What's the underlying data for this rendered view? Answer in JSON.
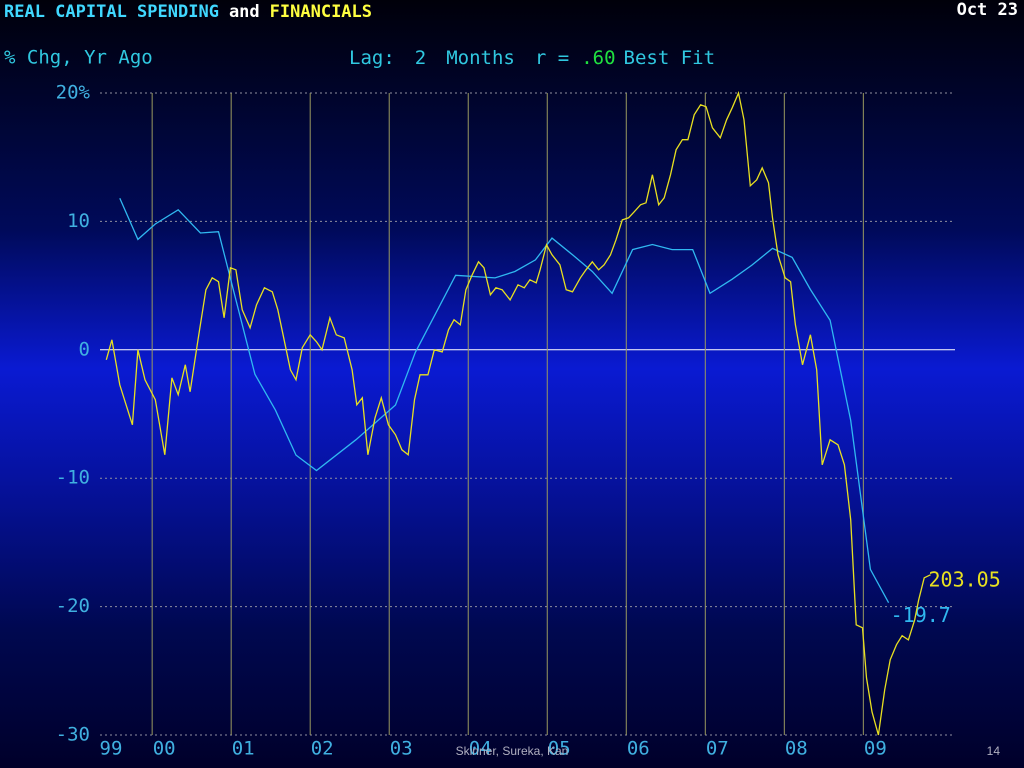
{
  "chart_data": {
    "type": "line",
    "title_parts": [
      {
        "text": "REAL CAPITAL SPENDING",
        "color": "#40d8ff"
      },
      {
        "text": "and",
        "color": "#ffffff"
      },
      {
        "text": "FINANCIALS",
        "color": "#ffff40"
      }
    ],
    "date": "Oct 23",
    "subtitle": "% Chg, Yr Ago",
    "lag_parts": [
      {
        "text": "Lag:",
        "color": "#30c8e0"
      },
      {
        "text": "2",
        "color": "#30c8e0"
      },
      {
        "text": "Months",
        "color": "#30c8e0"
      },
      {
        "text": "r =",
        "color": "#30c8e0"
      },
      {
        "text": ".60",
        "color": "#20e040"
      },
      {
        "text": "Best Fit",
        "color": "#30c8e0"
      }
    ],
    "footer": "Skinner, Sureka, Kan",
    "page_number": "14",
    "xlim": [
      1999.34,
      2010.16
    ],
    "ylim": [
      -30,
      20
    ],
    "xticks": [
      {
        "value": 1999,
        "label": "99"
      },
      {
        "value": 2000,
        "label": "00"
      },
      {
        "value": 2001,
        "label": "01"
      },
      {
        "value": 2002,
        "label": "02"
      },
      {
        "value": 2003,
        "label": "03"
      },
      {
        "value": 2004,
        "label": "04"
      },
      {
        "value": 2005,
        "label": "05"
      },
      {
        "value": 2006,
        "label": "06"
      },
      {
        "value": 2007,
        "label": "07"
      },
      {
        "value": 2008,
        "label": "08"
      },
      {
        "value": 2009,
        "label": "09"
      }
    ],
    "yticks": [
      {
        "value": 20,
        "label": "20%"
      },
      10,
      0,
      -10,
      -20,
      -30
    ],
    "grid": true,
    "series": [
      {
        "name": "REAL CAPITAL SPENDING",
        "color": "#30b8f0",
        "end_label": "-19.7",
        "x": [
          1999.59,
          1999.82,
          2000.04,
          2000.33,
          2000.61,
          2000.84,
          2001.3,
          2001.56,
          2001.82,
          2002.08,
          2002.58,
          2003.08,
          2003.33,
          2003.84,
          2004.34,
          2004.59,
          2004.85,
          2005.06,
          2005.32,
          2005.57,
          2005.82,
          2006.08,
          2006.33,
          2006.58,
          2006.84,
          2007.06,
          2007.34,
          2007.59,
          2007.85,
          2008.1,
          2008.33,
          2008.58,
          2008.84,
          2009.09,
          2009.32
        ],
        "values": [
          11.8,
          8.6,
          9.8,
          10.9,
          9.1,
          9.2,
          -1.9,
          -4.7,
          -8.2,
          -9.4,
          -7.0,
          -4.3,
          -0.2,
          5.8,
          5.6,
          6.1,
          7.0,
          8.7,
          7.4,
          6.1,
          4.4,
          7.8,
          8.2,
          7.8,
          7.8,
          4.4,
          5.5,
          6.6,
          7.9,
          7.2,
          4.7,
          2.3,
          -5.5,
          -17.1,
          -19.7
        ]
      },
      {
        "name": "FINANCIALS",
        "color": "#e8e020",
        "end_label": "203.05",
        "x": [
          1999.42,
          1999.49,
          1999.59,
          1999.75,
          1999.82,
          1999.91,
          2000.04,
          2000.16,
          2000.25,
          2000.33,
          2000.42,
          2000.48,
          2000.58,
          2000.68,
          2000.76,
          2000.84,
          2000.91,
          2000.99,
          2001.06,
          2001.14,
          2001.24,
          2001.32,
          2001.42,
          2001.52,
          2001.59,
          2001.75,
          2001.82,
          2001.9,
          2002.0,
          2002.08,
          2002.15,
          2002.25,
          2002.33,
          2002.43,
          2002.53,
          2002.59,
          2002.66,
          2002.73,
          2002.82,
          2002.9,
          2002.99,
          2003.08,
          2003.16,
          2003.24,
          2003.32,
          2003.39,
          2003.49,
          2003.57,
          2003.67,
          2003.75,
          2003.82,
          2003.9,
          2003.97,
          2004.05,
          2004.13,
          2004.2,
          2004.28,
          2004.35,
          2004.43,
          2004.53,
          2004.63,
          2004.71,
          2004.78,
          2004.86,
          2004.91,
          2004.99,
          2005.06,
          2005.16,
          2005.24,
          2005.32,
          2005.42,
          2005.49,
          2005.57,
          2005.65,
          2005.72,
          2005.8,
          2005.87,
          2005.95,
          2006.03,
          2006.1,
          2006.18,
          2006.25,
          2006.33,
          2006.41,
          2006.48,
          2006.56,
          2006.63,
          2006.71,
          2006.78,
          2006.86,
          2006.94,
          2007.01,
          2007.09,
          2007.19,
          2007.27,
          2007.34,
          2007.42,
          2007.49,
          2007.57,
          2007.65,
          2007.72,
          2007.8,
          2007.85,
          2007.92,
          2008.01,
          2008.08,
          2008.14,
          2008.23,
          2008.33,
          2008.41,
          2008.48,
          2008.58,
          2008.68,
          2008.76,
          2008.84,
          2008.91,
          2008.99,
          2009.04,
          2009.11,
          2009.19,
          2009.27,
          2009.34,
          2009.42,
          2009.49,
          2009.57,
          2009.65,
          2009.7,
          2009.77,
          2009.85
        ],
        "values": [
          -0.78,
          0.78,
          -2.73,
          -5.84,
          0.0,
          -2.34,
          -3.89,
          -8.18,
          -2.18,
          -3.5,
          -1.17,
          -3.27,
          0.78,
          4.67,
          5.61,
          5.3,
          2.49,
          6.39,
          6.23,
          3.12,
          1.71,
          3.5,
          4.83,
          4.52,
          3.12,
          -1.56,
          -2.34,
          0.16,
          1.17,
          0.62,
          0,
          2.49,
          1.17,
          0.93,
          -1.56,
          -4.28,
          -3.74,
          -8.18,
          -5.3,
          -3.74,
          -5.84,
          -6.62,
          -7.79,
          -8.18,
          -3.89,
          -1.95,
          -1.95,
          0,
          -0.16,
          1.56,
          2.34,
          1.95,
          4.67,
          5.84,
          6.85,
          6.39,
          4.28,
          4.83,
          4.67,
          3.89,
          5.06,
          4.83,
          5.45,
          5.22,
          6.23,
          8.18,
          7.4,
          6.62,
          4.67,
          4.52,
          5.61,
          6.23,
          6.85,
          6.23,
          6.62,
          7.4,
          8.57,
          10.12,
          10.28,
          10.75,
          11.29,
          11.45,
          13.63,
          11.29,
          11.84,
          13.63,
          15.58,
          16.36,
          16.36,
          18.3,
          19.08,
          18.93,
          17.29,
          16.51,
          17.91,
          18.85,
          20.0,
          17.91,
          12.77,
          13.24,
          14.17,
          13.01,
          10.28,
          7.4,
          5.61,
          5.3,
          1.95,
          -1.17,
          1.17,
          -1.56,
          -8.96,
          -7.01,
          -7.4,
          -8.96,
          -13.24,
          -21.42,
          -21.65,
          -25.55,
          -28.19,
          -30.0,
          -26.48,
          -24.14,
          -22.97,
          -22.27,
          -22.59,
          -21.03,
          -19.47,
          -17.76,
          -17.52
        ]
      }
    ]
  }
}
